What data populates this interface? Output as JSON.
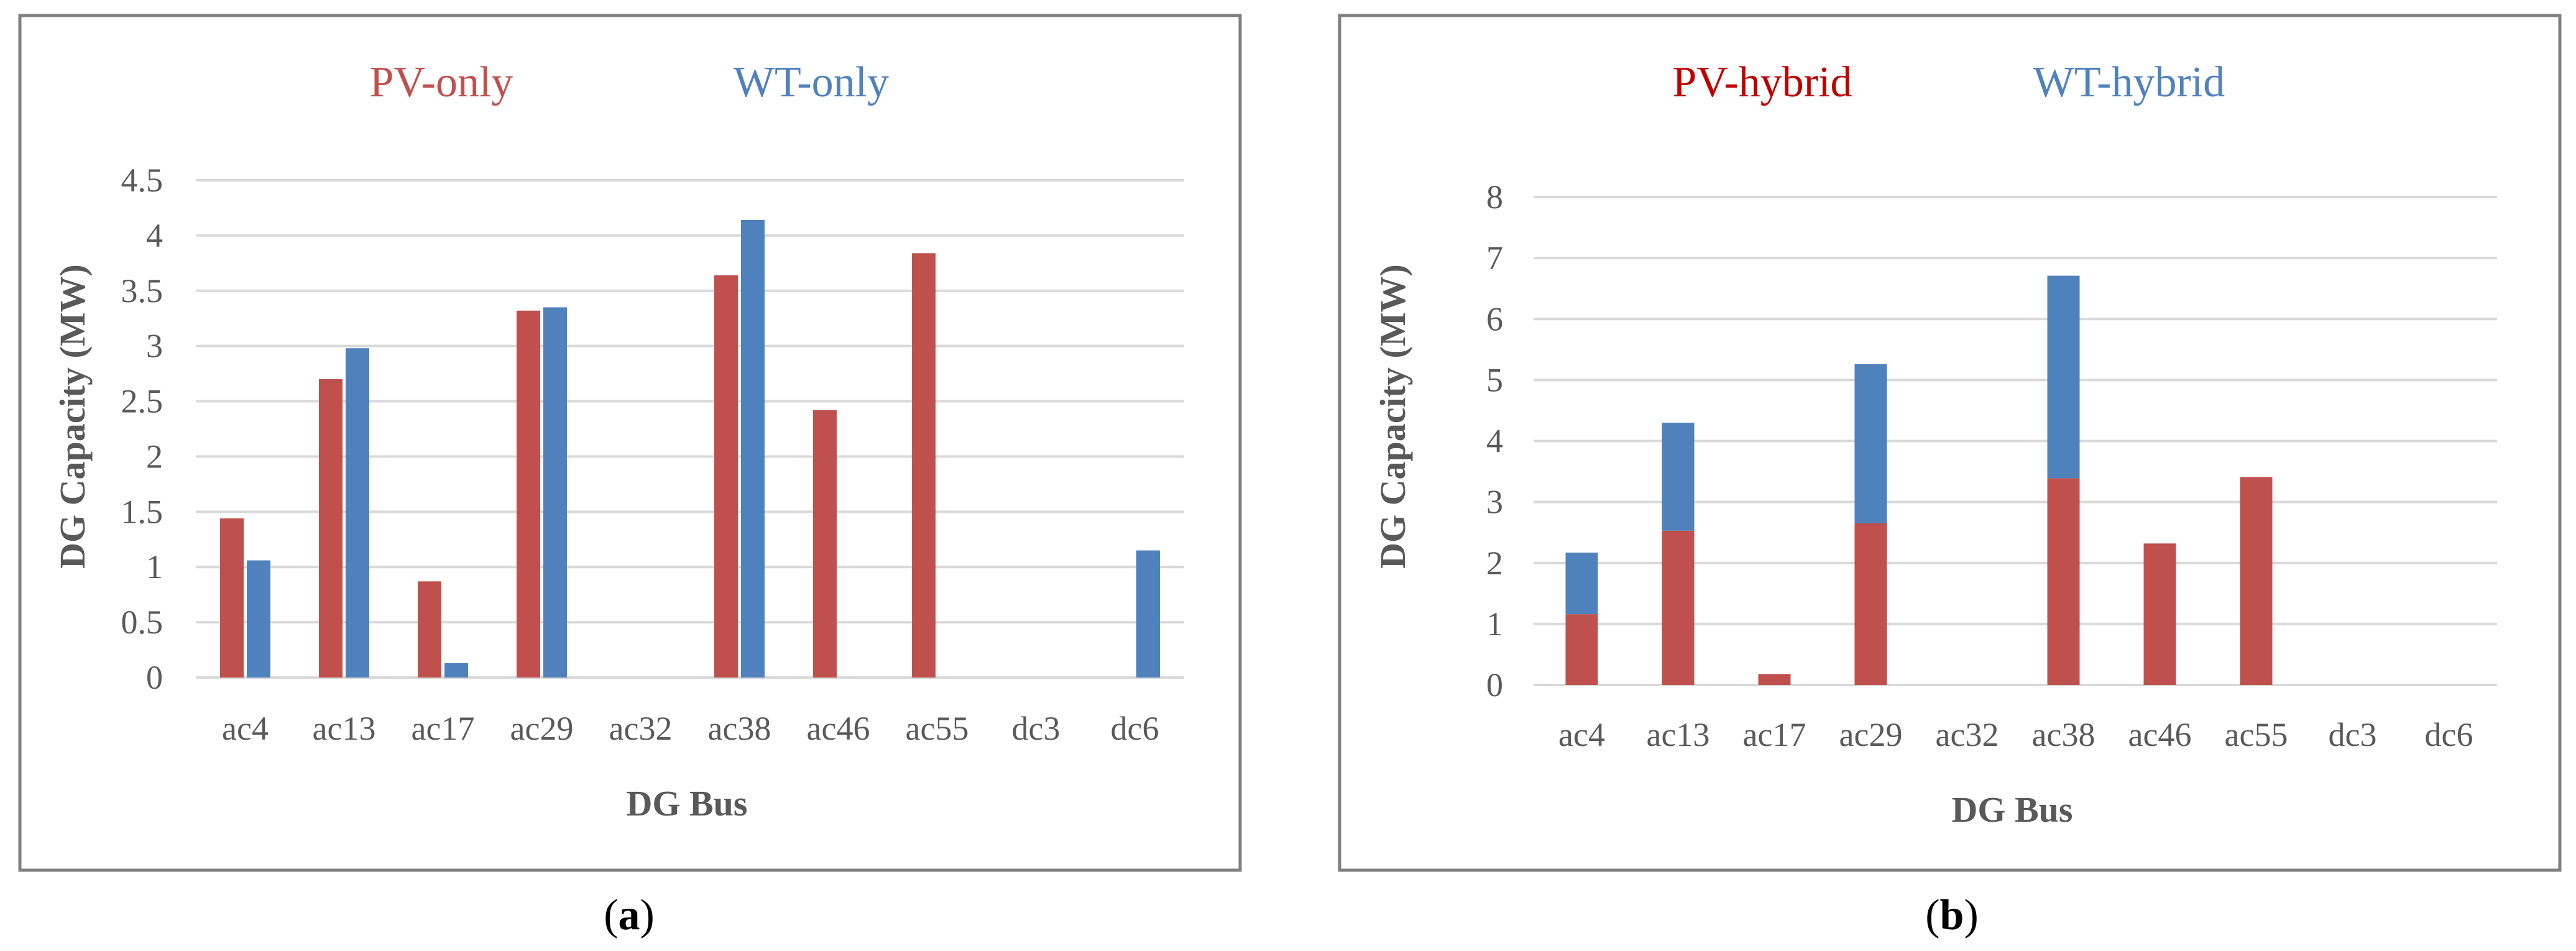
{
  "colors": {
    "pv": "#c0504d",
    "wt": "#4f81bd",
    "pv_title_b": "#c00000",
    "gridline": "#d9d9d9",
    "axis_text": "#595959",
    "frame": "#7f7f7f",
    "caption": "#000000"
  },
  "chart_data": [
    {
      "type": "bar",
      "stacked": false,
      "legend": [
        "PV-only",
        "WT-only"
      ],
      "caption": "(a)",
      "caption_letter": "a",
      "xlabel": "DG Bus",
      "ylabel": "DG Capacity (MW)",
      "ylim": [
        0,
        4.5
      ],
      "yticks": [
        "0",
        "0.5",
        "1",
        "1.5",
        "2",
        "2.5",
        "3",
        "3.5",
        "4",
        "4.5"
      ],
      "categories": [
        "ac4",
        "ac13",
        "ac17",
        "ac29",
        "ac32",
        "ac38",
        "ac46",
        "ac55",
        "dc3",
        "dc6"
      ],
      "series": [
        {
          "name": "PV-only",
          "values": [
            1.44,
            2.7,
            0.87,
            3.32,
            0,
            3.64,
            2.42,
            3.84,
            0,
            0
          ]
        },
        {
          "name": "WT-only",
          "values": [
            1.06,
            2.98,
            0.13,
            3.35,
            0,
            4.14,
            0,
            0,
            0,
            1.15
          ]
        }
      ]
    },
    {
      "type": "bar",
      "stacked": true,
      "legend": [
        "PV-hybrid",
        "WT-hybrid"
      ],
      "caption": "(b)",
      "caption_letter": "b",
      "xlabel": "DG Bus",
      "ylabel": "DG Capacity (MW)",
      "ylim": [
        0,
        8
      ],
      "yticks": [
        "0",
        "1",
        "2",
        "3",
        "4",
        "5",
        "6",
        "7",
        "8"
      ],
      "categories": [
        "ac4",
        "ac13",
        "ac17",
        "ac29",
        "ac32",
        "ac38",
        "ac46",
        "ac55",
        "dc3",
        "dc6"
      ],
      "series": [
        {
          "name": "PV-hybrid",
          "values": [
            1.16,
            2.53,
            0.18,
            2.65,
            0,
            3.39,
            2.32,
            3.41,
            0,
            0
          ]
        },
        {
          "name": "WT-hybrid",
          "values": [
            1.01,
            1.77,
            0,
            2.61,
            0,
            3.32,
            0,
            0,
            0,
            0
          ]
        }
      ]
    }
  ]
}
